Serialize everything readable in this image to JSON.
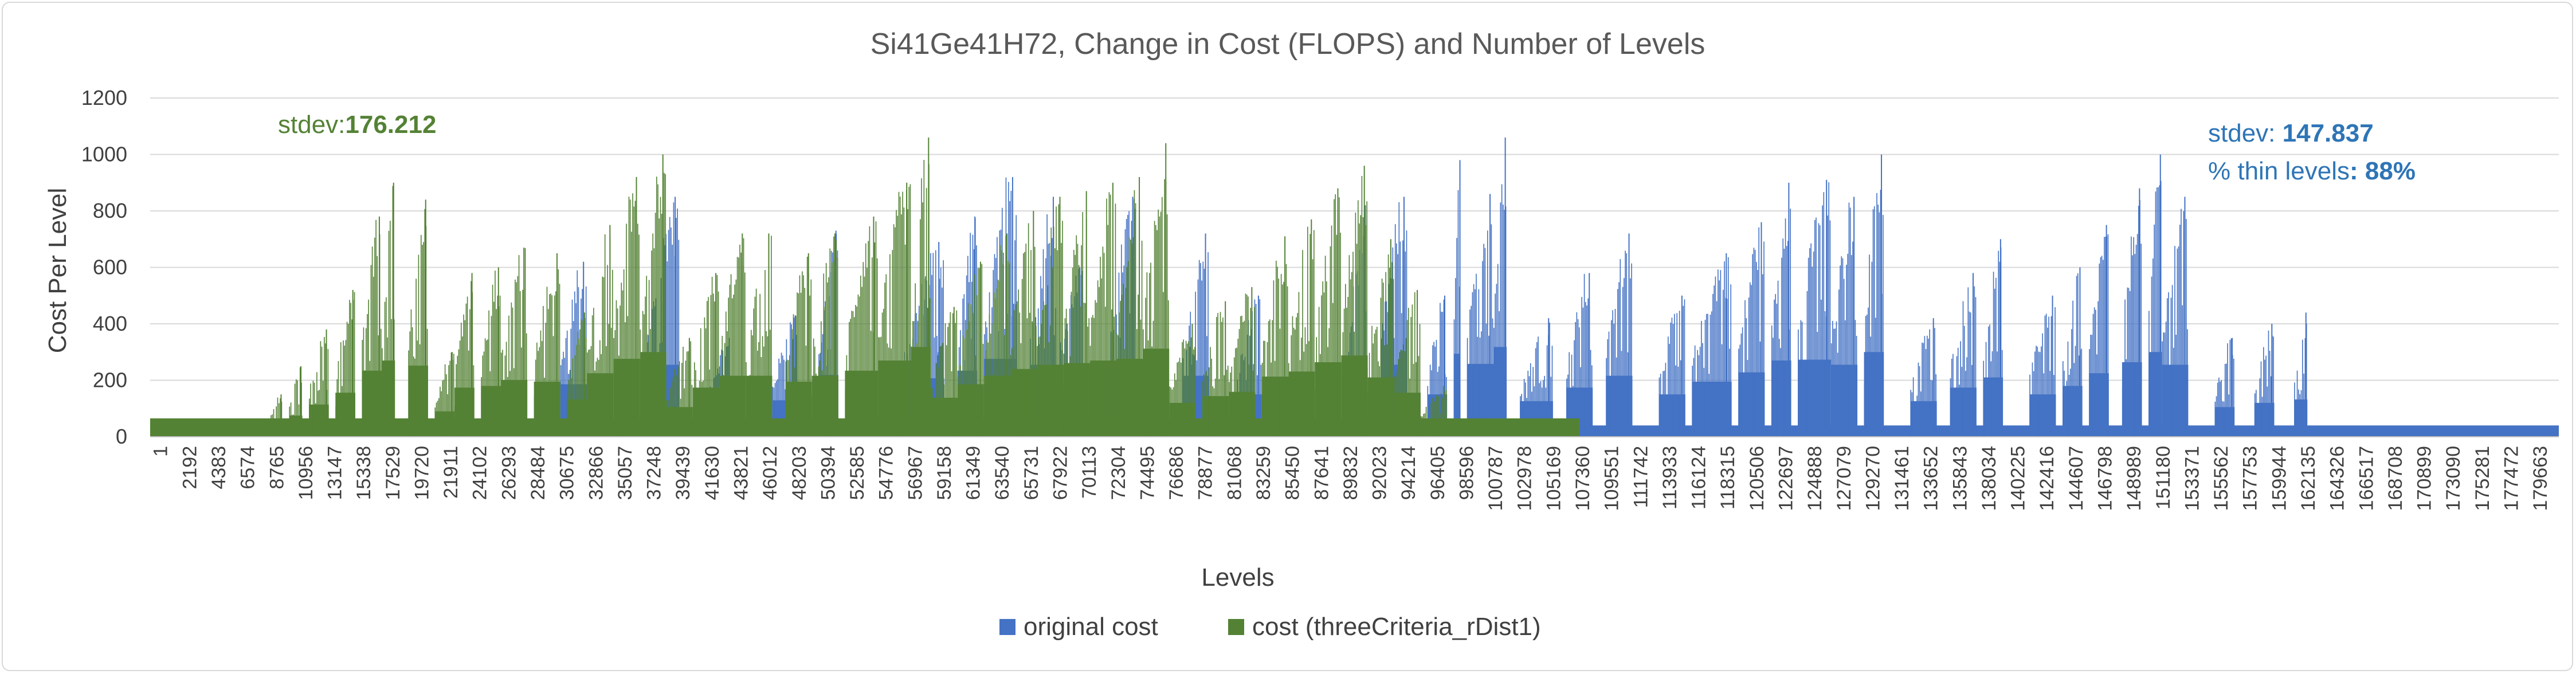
{
  "chart_data": {
    "type": "bar",
    "title": "Si41Ge41H72, Change in Cost (FLOPS) and Number of Levels",
    "xlabel": "Levels",
    "ylabel": "Cost Per Level",
    "ylim": [
      0,
      1200
    ],
    "yticks": [
      0,
      200,
      400,
      600,
      800,
      1000,
      1200
    ],
    "grid": "horizontal",
    "legend_position": "bottom",
    "x_tick_labels": [
      "1",
      "2192",
      "4383",
      "6574",
      "8765",
      "10956",
      "13147",
      "15338",
      "17529",
      "19720",
      "21911",
      "24102",
      "26293",
      "28484",
      "30675",
      "32866",
      "35057",
      "37248",
      "39439",
      "41630",
      "43821",
      "46012",
      "48203",
      "50394",
      "52585",
      "54776",
      "56967",
      "59158",
      "61349",
      "63540",
      "65731",
      "67922",
      "70113",
      "72304",
      "74495",
      "76686",
      "78877",
      "81068",
      "83259",
      "85450",
      "87641",
      "89832",
      "92023",
      "94214",
      "96405",
      "98596",
      "100787",
      "102978",
      "105169",
      "107360",
      "109551",
      "111742",
      "113933",
      "116124",
      "118315",
      "120506",
      "122697",
      "124888",
      "127079",
      "129270",
      "131461",
      "133652",
      "135843",
      "138034",
      "140225",
      "142416",
      "144607",
      "146798",
      "148989",
      "151180",
      "153371",
      "155562",
      "157753",
      "159944",
      "162135",
      "164326",
      "166517",
      "168708",
      "170899",
      "173090",
      "175281",
      "177472",
      "179663"
    ],
    "series": [
      {
        "name": "original cost",
        "color": "#4472c4",
        "baseline": 40,
        "x_max": 182000,
        "bursts": [
          [
            31000,
            33000,
            620
          ],
          [
            37500,
            40000,
            850
          ],
          [
            42000,
            44000,
            350
          ],
          [
            47000,
            49000,
            430
          ],
          [
            50500,
            52000,
            730
          ],
          [
            57000,
            60000,
            690
          ],
          [
            61000,
            62500,
            780
          ],
          [
            63000,
            65500,
            920
          ],
          [
            66500,
            68500,
            850
          ],
          [
            68500,
            70500,
            600
          ],
          [
            72500,
            74500,
            850
          ],
          [
            78000,
            80000,
            720
          ],
          [
            82000,
            84000,
            500
          ],
          [
            90500,
            92000,
            820
          ],
          [
            93000,
            95000,
            850
          ],
          [
            96500,
            98000,
            500
          ],
          [
            98500,
            99000,
            980
          ],
          [
            99500,
            101500,
            860
          ],
          [
            101500,
            102500,
            1060
          ],
          [
            103500,
            106000,
            420
          ],
          [
            107000,
            109000,
            580
          ],
          [
            110000,
            112000,
            720
          ],
          [
            114000,
            116000,
            500
          ],
          [
            116500,
            119500,
            650
          ],
          [
            120000,
            122000,
            760
          ],
          [
            122500,
            124000,
            900
          ],
          [
            124500,
            127000,
            910
          ],
          [
            127000,
            129000,
            850
          ],
          [
            129500,
            131000,
            1000
          ],
          [
            133000,
            135000,
            420
          ],
          [
            136000,
            138000,
            580
          ],
          [
            138500,
            140000,
            700
          ],
          [
            142000,
            144000,
            500
          ],
          [
            144500,
            146000,
            600
          ],
          [
            146500,
            148000,
            750
          ],
          [
            149000,
            150500,
            880
          ],
          [
            151000,
            152000,
            1000
          ],
          [
            152000,
            154000,
            850
          ],
          [
            156000,
            157500,
            350
          ],
          [
            159000,
            160500,
            400
          ],
          [
            162000,
            163000,
            440
          ]
        ]
      },
      {
        "name": "cost (threeCriteria_rDist1)",
        "color": "#548235",
        "baseline": 65,
        "x_max": 108000,
        "bursts": [
          [
            9000,
            10000,
            150
          ],
          [
            10500,
            11500,
            250
          ],
          [
            12000,
            13500,
            380
          ],
          [
            14000,
            15500,
            520
          ],
          [
            16000,
            17500,
            780
          ],
          [
            17500,
            18500,
            900
          ],
          [
            19500,
            21000,
            840
          ],
          [
            21500,
            23000,
            300
          ],
          [
            23000,
            24500,
            580
          ],
          [
            25000,
            26500,
            600
          ],
          [
            26500,
            28500,
            670
          ],
          [
            29000,
            31000,
            650
          ],
          [
            31500,
            33000,
            440
          ],
          [
            33000,
            35000,
            750
          ],
          [
            35000,
            37000,
            920
          ],
          [
            37000,
            39000,
            1000
          ],
          [
            39000,
            41000,
            350
          ],
          [
            41000,
            43000,
            580
          ],
          [
            43000,
            45000,
            720
          ],
          [
            45000,
            47000,
            720
          ],
          [
            48000,
            50000,
            650
          ],
          [
            50000,
            52000,
            720
          ],
          [
            52500,
            55000,
            780
          ],
          [
            55000,
            57500,
            900
          ],
          [
            57500,
            59000,
            1060
          ],
          [
            59000,
            61000,
            460
          ],
          [
            61000,
            63000,
            620
          ],
          [
            63000,
            65000,
            720
          ],
          [
            65000,
            67000,
            800
          ],
          [
            67000,
            69000,
            850
          ],
          [
            69000,
            71000,
            870
          ],
          [
            71000,
            73000,
            900
          ],
          [
            73000,
            75000,
            920
          ],
          [
            75000,
            77000,
            1040
          ],
          [
            77000,
            79000,
            400
          ],
          [
            79500,
            81500,
            480
          ],
          [
            81500,
            83500,
            530
          ],
          [
            84000,
            86000,
            710
          ],
          [
            86000,
            88000,
            770
          ],
          [
            88000,
            90000,
            880
          ],
          [
            90000,
            92000,
            960
          ],
          [
            92000,
            94000,
            700
          ],
          [
            94000,
            96000,
            520
          ],
          [
            96000,
            98000,
            180
          ]
        ]
      }
    ],
    "annotations": {
      "green_label": "stdev:",
      "green_value": "176.212",
      "blue_label": "stdev: ",
      "blue_value": "147.837",
      "blue_label2": "% thin levels",
      "blue_value2": ": 88%"
    }
  }
}
